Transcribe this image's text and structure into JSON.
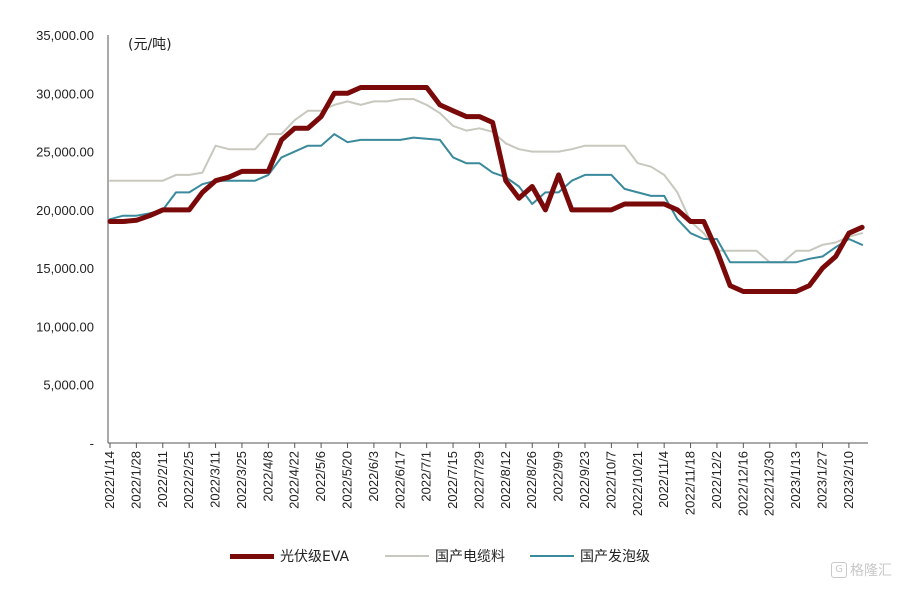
{
  "chart_data": {
    "type": "line",
    "unit_label": "(元/吨)",
    "y_ticks": [
      "35,000.00",
      "30,000.00",
      "25,000.00",
      "20,000.00",
      "15,000.00",
      "10,000.00",
      "5,000.00",
      "-"
    ],
    "y_tick_values": [
      35000,
      30000,
      25000,
      20000,
      15000,
      10000,
      5000,
      0
    ],
    "ylim": [
      0,
      35000
    ],
    "x_ticks": [
      "2022/1/14",
      "2022/1/28",
      "2022/2/11",
      "2022/2/25",
      "2022/3/11",
      "2022/3/25",
      "2022/4/8",
      "2022/4/22",
      "2022/5/6",
      "2022/5/20",
      "2022/6/3",
      "2022/6/17",
      "2022/7/1",
      "2022/7/15",
      "2022/7/29",
      "2022/8/12",
      "2022/8/26",
      "2022/9/9",
      "2022/9/23",
      "2022/10/7",
      "2022/10/21",
      "2022/11/4",
      "2022/11/18",
      "2022/12/2",
      "2022/12/16",
      "2022/12/30",
      "2023/1/13",
      "2023/1/27",
      "2023/2/10"
    ],
    "x_tick_week_index": [
      0,
      2,
      4,
      6,
      8,
      10,
      12,
      14,
      16,
      18,
      20,
      22,
      24,
      26,
      28,
      30,
      32,
      34,
      36,
      38,
      40,
      42,
      44,
      46,
      48,
      50,
      52,
      54,
      56
    ],
    "grid": false,
    "legend_position": "bottom",
    "series": [
      {
        "name": "光伏级EVA",
        "color": "#7a0a0a",
        "values": [
          19000,
          19000,
          19100,
          19500,
          20000,
          20000,
          20000,
          21500,
          22500,
          22800,
          23300,
          23300,
          23300,
          26000,
          27000,
          27000,
          28000,
          30000,
          30000,
          30500,
          30500,
          30500,
          30500,
          30500,
          30500,
          29000,
          28500,
          28000,
          28000,
          27500,
          22500,
          21000,
          22000,
          20000,
          23000,
          20000,
          20000,
          20000,
          20000,
          20500,
          20500,
          20500,
          20500,
          20000,
          19000,
          19000,
          16500,
          13500,
          13000,
          13000,
          13000,
          13000,
          13000,
          13500,
          15000,
          16000,
          18000,
          18500
        ]
      },
      {
        "name": "国产电缆料",
        "color": "#c8c8be",
        "values": [
          22500,
          22500,
          22500,
          22500,
          22500,
          23000,
          23000,
          23200,
          25500,
          25200,
          25200,
          25200,
          26500,
          26500,
          27700,
          28500,
          28500,
          29000,
          29300,
          29000,
          29300,
          29300,
          29500,
          29500,
          29000,
          28300,
          27200,
          26800,
          27000,
          26700,
          25700,
          25200,
          25000,
          25000,
          25000,
          25200,
          25500,
          25500,
          25500,
          25500,
          24000,
          23700,
          23000,
          21500,
          19000,
          18000,
          16500,
          16500,
          16500,
          16500,
          15500,
          15500,
          16500,
          16500,
          17000,
          17200,
          17700,
          18000
        ]
      },
      {
        "name": "国产发泡级",
        "color": "#3a8a9c",
        "values": [
          19200,
          19500,
          19500,
          19700,
          20000,
          21500,
          21500,
          22200,
          22500,
          22500,
          22500,
          22500,
          23000,
          24500,
          25000,
          25500,
          25500,
          26500,
          25800,
          26000,
          26000,
          26000,
          26000,
          26200,
          26100,
          26000,
          24500,
          24000,
          24000,
          23200,
          22800,
          22000,
          20500,
          21500,
          21500,
          22500,
          23000,
          23000,
          23000,
          21800,
          21500,
          21200,
          21200,
          19200,
          18000,
          17500,
          17500,
          15500,
          15500,
          15500,
          15500,
          15500,
          15500,
          15800,
          16000,
          16800,
          17500,
          17000
        ]
      }
    ]
  },
  "watermark": {
    "icon": "gelonghui-icon",
    "text": "格隆汇"
  }
}
